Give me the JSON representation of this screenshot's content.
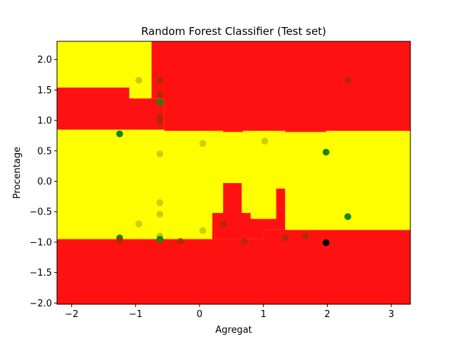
{
  "chart_data": {
    "type": "scatter",
    "title": "Random Forest Classifier (Test set)",
    "xlabel": "Agregat",
    "ylabel": "Procentage",
    "xlim": [
      -2.23,
      3.3
    ],
    "ylim": [
      -2.02,
      2.3
    ],
    "xticks": [
      -2,
      -1,
      0,
      1,
      2,
      3
    ],
    "yticks": [
      -2.0,
      -1.5,
      -1.0,
      -0.5,
      0.0,
      0.5,
      1.0,
      1.5,
      2.0
    ],
    "xtick_labels": [
      "−2",
      "−1",
      "0",
      "1",
      "2",
      "3"
    ],
    "ytick_labels": [
      "−2.0",
      "−1.5",
      "−1.0",
      "−0.5",
      "0.0",
      "0.5",
      "1.0",
      "1.5",
      "2.0"
    ],
    "region_colors": {
      "class_0": "#ff1111",
      "class_1": "#ffff00"
    },
    "decision_regions": [
      {
        "class": "class_1",
        "polygon": [
          [
            -2.23,
            2.3
          ],
          [
            -0.75,
            2.3
          ],
          [
            -0.75,
            1.36
          ],
          [
            -0.55,
            1.36
          ],
          [
            -0.55,
            0.83
          ],
          [
            3.3,
            0.83
          ],
          [
            3.3,
            -0.8
          ],
          [
            1.0,
            -0.8
          ],
          [
            1.0,
            -0.95
          ],
          [
            -2.23,
            -0.95
          ]
        ]
      },
      {
        "class": "class_0",
        "polygon": [
          [
            -2.23,
            1.54
          ],
          [
            -1.1,
            1.54
          ],
          [
            -1.1,
            1.36
          ],
          [
            -0.55,
            1.36
          ],
          [
            -0.55,
            0.85
          ],
          [
            -2.23,
            0.85
          ]
        ]
      },
      {
        "class": "class_0",
        "polygon": [
          [
            0.2,
            -0.95
          ],
          [
            0.2,
            -0.52
          ],
          [
            0.37,
            -0.52
          ],
          [
            0.37,
            -0.03
          ],
          [
            0.66,
            -0.03
          ],
          [
            0.66,
            -0.52
          ],
          [
            0.8,
            -0.52
          ],
          [
            0.8,
            -0.62
          ],
          [
            1.2,
            -0.62
          ],
          [
            1.2,
            -0.12
          ],
          [
            1.34,
            -0.12
          ],
          [
            1.34,
            -0.8
          ],
          [
            1.0,
            -0.8
          ],
          [
            1.0,
            -0.95
          ]
        ]
      },
      {
        "class": "class_0",
        "polygon": [
          [
            0.8,
            -0.62
          ],
          [
            0.8,
            -0.75
          ],
          [
            1.2,
            -0.75
          ],
          [
            1.2,
            -0.62
          ]
        ]
      },
      {
        "class": "class_0",
        "polygon": [
          [
            0.37,
            0.83
          ],
          [
            0.37,
            0.81
          ],
          [
            0.68,
            0.81
          ],
          [
            0.68,
            0.83
          ]
        ]
      },
      {
        "class": "class_0",
        "polygon": [
          [
            1.34,
            0.83
          ],
          [
            1.34,
            0.81
          ],
          [
            1.98,
            0.81
          ],
          [
            1.98,
            0.83
          ]
        ]
      }
    ],
    "point_colors": {
      "class_0": "#b62a00",
      "class_1": "#c9d000",
      "correct_green": "#138a06",
      "black": "#000000"
    },
    "points": [
      {
        "x": -0.95,
        "y": 1.66,
        "class": "class_1"
      },
      {
        "x": -0.62,
        "y": 1.66,
        "class": "class_0"
      },
      {
        "x": 2.32,
        "y": 1.66,
        "class": "class_0"
      },
      {
        "x": -0.62,
        "y": 1.43,
        "class": "class_0"
      },
      {
        "x": -0.62,
        "y": 1.3,
        "class": "correct_green"
      },
      {
        "x": -0.62,
        "y": 1.06,
        "class": "class_0"
      },
      {
        "x": -0.62,
        "y": 0.98,
        "class": "class_0"
      },
      {
        "x": -1.25,
        "y": 0.78,
        "class": "correct_green"
      },
      {
        "x": 1.02,
        "y": 0.66,
        "class": "class_1"
      },
      {
        "x": 0.05,
        "y": 0.62,
        "class": "class_1"
      },
      {
        "x": 1.98,
        "y": 0.48,
        "class": "correct_green"
      },
      {
        "x": -0.62,
        "y": 0.45,
        "class": "class_1"
      },
      {
        "x": -0.62,
        "y": -0.35,
        "class": "class_1"
      },
      {
        "x": -0.62,
        "y": -0.54,
        "class": "class_1"
      },
      {
        "x": 2.32,
        "y": -0.58,
        "class": "correct_green"
      },
      {
        "x": -0.95,
        "y": -0.7,
        "class": "class_1"
      },
      {
        "x": 0.37,
        "y": -0.7,
        "class": "class_0"
      },
      {
        "x": 0.05,
        "y": -0.81,
        "class": "class_1"
      },
      {
        "x": 1.66,
        "y": -0.9,
        "class": "class_0"
      },
      {
        "x": -0.62,
        "y": -0.9,
        "class": "class_1"
      },
      {
        "x": 1.34,
        "y": -0.93,
        "class": "class_0"
      },
      {
        "x": -1.25,
        "y": -0.93,
        "class": "correct_green"
      },
      {
        "x": -0.62,
        "y": -0.95,
        "class": "correct_green"
      },
      {
        "x": -1.25,
        "y": -0.98,
        "class": "class_0"
      },
      {
        "x": -0.3,
        "y": -0.99,
        "class": "class_0"
      },
      {
        "x": 0.7,
        "y": -0.99,
        "class": "class_0"
      },
      {
        "x": 1.98,
        "y": -1.01,
        "class": "black"
      }
    ]
  }
}
